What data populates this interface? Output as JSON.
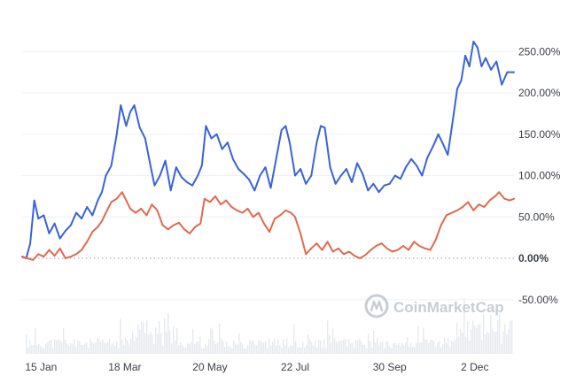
{
  "watermark": {
    "text": "CoinMarketCap",
    "icon": "coinmarketcap-logo-icon"
  },
  "chart_data": {
    "type": "line",
    "title": "",
    "xlabel": "",
    "ylabel": "",
    "x_ticks": [
      "15 Jan",
      "18 Mar",
      "20 May",
      "22 Jul",
      "30 Sep",
      "2 Dec"
    ],
    "x_tick_dates": [
      "Jan 15",
      "Mar 18",
      "May 20",
      "Jul 22",
      "Sep 30",
      "Dec 2"
    ],
    "x_range": [
      "Jan 1",
      "Dec 31"
    ],
    "y_ticks": [
      "250.00%",
      "200.00%",
      "150.00%",
      "100.00%",
      "50.00%",
      "0.00%",
      "-50.00%"
    ],
    "y_tick_values": [
      250,
      200,
      150,
      100,
      50,
      0,
      -50
    ],
    "ylim": [
      -50,
      270
    ],
    "y_axis_side": "right",
    "grid": true,
    "zero_line": "dotted",
    "volume_bars": true,
    "colors": {
      "series_1": "#3a62da",
      "series_2": "#e06a4f",
      "grid": "#eef0f3",
      "zero": "#9aa0a8",
      "volume": "#e6e9ee"
    },
    "series": [
      {
        "color": "#3a62da",
        "points": [
          [
            "Jan 1",
            2
          ],
          [
            "Jan 4",
            0
          ],
          [
            "Jan 7",
            18
          ],
          [
            "Jan 10",
            70
          ],
          [
            "Jan 13",
            48
          ],
          [
            "Jan 17",
            52
          ],
          [
            "Jan 21",
            30
          ],
          [
            "Jan 25",
            42
          ],
          [
            "Jan 29",
            24
          ],
          [
            "Feb 2",
            33
          ],
          [
            "Feb 6",
            40
          ],
          [
            "Feb 10",
            55
          ],
          [
            "Feb 14",
            48
          ],
          [
            "Feb 18",
            62
          ],
          [
            "Feb 22",
            52
          ],
          [
            "Feb 26",
            70
          ],
          [
            "Mar 1",
            80
          ],
          [
            "Mar 4",
            100
          ],
          [
            "Mar 8",
            112
          ],
          [
            "Mar 12",
            150
          ],
          [
            "Mar 15",
            185
          ],
          [
            "Mar 19",
            160
          ],
          [
            "Mar 22",
            177
          ],
          [
            "Mar 25",
            185
          ],
          [
            "Mar 29",
            158
          ],
          [
            "Apr 2",
            145
          ],
          [
            "Apr 6",
            112
          ],
          [
            "Apr 9",
            88
          ],
          [
            "Apr 13",
            100
          ],
          [
            "Apr 17",
            118
          ],
          [
            "Apr 21",
            82
          ],
          [
            "Apr 25",
            110
          ],
          [
            "Apr 29",
            98
          ],
          [
            "May 3",
            92
          ],
          [
            "May 7",
            88
          ],
          [
            "May 11",
            100
          ],
          [
            "May 14",
            112
          ],
          [
            "May 17",
            160
          ],
          [
            "May 21",
            145
          ],
          [
            "May 25",
            150
          ],
          [
            "May 29",
            132
          ],
          [
            "Jun 2",
            140
          ],
          [
            "Jun 6",
            120
          ],
          [
            "Jun 10",
            108
          ],
          [
            "Jun 14",
            102
          ],
          [
            "Jun 18",
            95
          ],
          [
            "Jun 22",
            82
          ],
          [
            "Jun 26",
            100
          ],
          [
            "Jun 30",
            110
          ],
          [
            "Jul 4",
            85
          ],
          [
            "Jul 8",
            120
          ],
          [
            "Jul 12",
            155
          ],
          [
            "Jul 15",
            160
          ],
          [
            "Jul 18",
            140
          ],
          [
            "Jul 22",
            100
          ],
          [
            "Jul 26",
            108
          ],
          [
            "Jul 30",
            90
          ],
          [
            "Aug 3",
            100
          ],
          [
            "Aug 7",
            140
          ],
          [
            "Aug 10",
            160
          ],
          [
            "Aug 13",
            158
          ],
          [
            "Aug 17",
            110
          ],
          [
            "Aug 21",
            90
          ],
          [
            "Aug 25",
            100
          ],
          [
            "Aug 29",
            108
          ],
          [
            "Sep 2",
            92
          ],
          [
            "Sep 6",
            115
          ],
          [
            "Sep 10",
            102
          ],
          [
            "Sep 14",
            82
          ],
          [
            "Sep 18",
            90
          ],
          [
            "Sep 22",
            80
          ],
          [
            "Sep 26",
            88
          ],
          [
            "Sep 30",
            90
          ],
          [
            "Oct 4",
            100
          ],
          [
            "Oct 8",
            96
          ],
          [
            "Oct 12",
            110
          ],
          [
            "Oct 16",
            120
          ],
          [
            "Oct 20",
            112
          ],
          [
            "Oct 24",
            100
          ],
          [
            "Oct 28",
            122
          ],
          [
            "Nov 1",
            135
          ],
          [
            "Nov 5",
            150
          ],
          [
            "Nov 8",
            140
          ],
          [
            "Nov 12",
            125
          ],
          [
            "Nov 16",
            170
          ],
          [
            "Nov 19",
            205
          ],
          [
            "Nov 22",
            215
          ],
          [
            "Nov 25",
            245
          ],
          [
            "Nov 28",
            232
          ],
          [
            "Dec 1",
            262
          ],
          [
            "Dec 4",
            255
          ],
          [
            "Dec 7",
            232
          ],
          [
            "Dec 10",
            242
          ],
          [
            "Dec 14",
            228
          ],
          [
            "Dec 18",
            238
          ],
          [
            "Dec 22",
            210
          ],
          [
            "Dec 26",
            225
          ],
          [
            "Dec 31",
            225
          ]
        ]
      },
      {
        "color": "#e06a4f",
        "points": [
          [
            "Jan 1",
            2
          ],
          [
            "Jan 5",
            0
          ],
          [
            "Jan 9",
            -2
          ],
          [
            "Jan 13",
            5
          ],
          [
            "Jan 17",
            2
          ],
          [
            "Jan 21",
            10
          ],
          [
            "Jan 25",
            3
          ],
          [
            "Jan 29",
            12
          ],
          [
            "Feb 2",
            0
          ],
          [
            "Feb 6",
            2
          ],
          [
            "Feb 10",
            5
          ],
          [
            "Feb 14",
            10
          ],
          [
            "Feb 18",
            20
          ],
          [
            "Feb 22",
            32
          ],
          [
            "Feb 26",
            38
          ],
          [
            "Mar 1",
            45
          ],
          [
            "Mar 4",
            55
          ],
          [
            "Mar 8",
            68
          ],
          [
            "Mar 12",
            72
          ],
          [
            "Mar 16",
            80
          ],
          [
            "Mar 19",
            70
          ],
          [
            "Mar 22",
            60
          ],
          [
            "Mar 26",
            55
          ],
          [
            "Mar 30",
            60
          ],
          [
            "Apr 3",
            52
          ],
          [
            "Apr 7",
            65
          ],
          [
            "Apr 11",
            58
          ],
          [
            "Apr 15",
            40
          ],
          [
            "Apr 19",
            35
          ],
          [
            "Apr 23",
            40
          ],
          [
            "Apr 27",
            43
          ],
          [
            "May 1",
            35
          ],
          [
            "May 5",
            30
          ],
          [
            "May 9",
            38
          ],
          [
            "May 13",
            42
          ],
          [
            "May 16",
            72
          ],
          [
            "May 20",
            68
          ],
          [
            "May 24",
            75
          ],
          [
            "May 28",
            65
          ],
          [
            "Jun 1",
            70
          ],
          [
            "Jun 5",
            62
          ],
          [
            "Jun 9",
            58
          ],
          [
            "Jun 13",
            55
          ],
          [
            "Jun 17",
            60
          ],
          [
            "Jun 21",
            50
          ],
          [
            "Jun 25",
            55
          ],
          [
            "Jun 29",
            42
          ],
          [
            "Jul 3",
            32
          ],
          [
            "Jul 7",
            48
          ],
          [
            "Jul 11",
            52
          ],
          [
            "Jul 15",
            58
          ],
          [
            "Jul 19",
            55
          ],
          [
            "Jul 22",
            50
          ],
          [
            "Jul 26",
            30
          ],
          [
            "Jul 30",
            5
          ],
          [
            "Aug 3",
            12
          ],
          [
            "Aug 7",
            18
          ],
          [
            "Aug 11",
            10
          ],
          [
            "Aug 15",
            20
          ],
          [
            "Aug 19",
            8
          ],
          [
            "Aug 23",
            12
          ],
          [
            "Aug 27",
            5
          ],
          [
            "Aug 31",
            8
          ],
          [
            "Sep 4",
            3
          ],
          [
            "Sep 8",
            0
          ],
          [
            "Sep 12",
            4
          ],
          [
            "Sep 16",
            10
          ],
          [
            "Sep 20",
            15
          ],
          [
            "Sep 24",
            18
          ],
          [
            "Sep 28",
            12
          ],
          [
            "Oct 2",
            8
          ],
          [
            "Oct 6",
            10
          ],
          [
            "Oct 10",
            15
          ],
          [
            "Oct 14",
            10
          ],
          [
            "Oct 18",
            20
          ],
          [
            "Oct 22",
            15
          ],
          [
            "Oct 26",
            12
          ],
          [
            "Oct 30",
            10
          ],
          [
            "Nov 3",
            22
          ],
          [
            "Nov 7",
            40
          ],
          [
            "Nov 11",
            52
          ],
          [
            "Nov 15",
            55
          ],
          [
            "Nov 19",
            58
          ],
          [
            "Nov 23",
            62
          ],
          [
            "Nov 27",
            68
          ],
          [
            "Dec 1",
            58
          ],
          [
            "Dec 5",
            65
          ],
          [
            "Dec 9",
            62
          ],
          [
            "Dec 13",
            70
          ],
          [
            "Dec 17",
            75
          ],
          [
            "Dec 20",
            80
          ],
          [
            "Dec 24",
            72
          ],
          [
            "Dec 28",
            70
          ],
          [
            "Dec 31",
            72
          ]
        ]
      }
    ]
  }
}
